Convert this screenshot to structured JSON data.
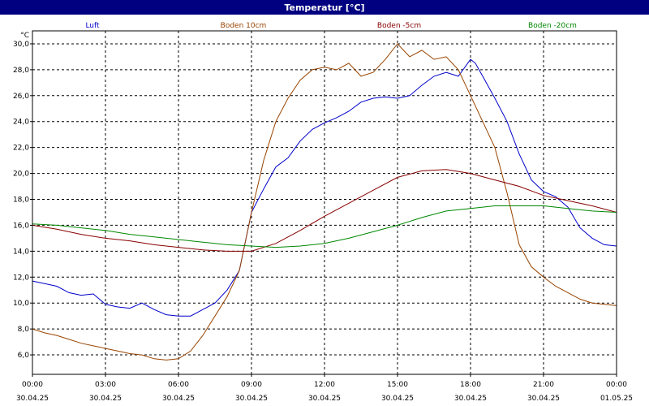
{
  "window": {
    "title": "Temperatur [°C]"
  },
  "colors": {
    "titlebar": "#000080",
    "grid": "#000000",
    "axis": "#000000"
  },
  "chart_data": {
    "type": "line",
    "title": "Temperatur [°C]",
    "ylabel": "°C",
    "xlabel": "",
    "ylim": [
      4.5,
      31.0
    ],
    "xlim": [
      0,
      24
    ],
    "x_unit": "hours from 30.04.25 00:00",
    "grid": true,
    "legend_placement": "top",
    "x_ticks": [
      {
        "x": 0,
        "time": "00:00",
        "date": "30.04.25"
      },
      {
        "x": 3,
        "time": "03:00",
        "date": "30.04.25"
      },
      {
        "x": 6,
        "time": "06:00",
        "date": "30.04.25"
      },
      {
        "x": 9,
        "time": "09:00",
        "date": "30.04.25"
      },
      {
        "x": 12,
        "time": "12:00",
        "date": "30.04.25"
      },
      {
        "x": 15,
        "time": "15:00",
        "date": "30.04.25"
      },
      {
        "x": 18,
        "time": "18:00",
        "date": "30.04.25"
      },
      {
        "x": 21,
        "time": "21:00",
        "date": "30.04.25"
      },
      {
        "x": 24,
        "time": "00:00",
        "date": "01.05.25"
      }
    ],
    "y_ticks": [
      {
        "v": 6,
        "label": "6,0"
      },
      {
        "v": 8,
        "label": "8,0"
      },
      {
        "v": 10,
        "label": "10,0"
      },
      {
        "v": 12,
        "label": "12,0"
      },
      {
        "v": 14,
        "label": "14,0"
      },
      {
        "v": 16,
        "label": "16,0"
      },
      {
        "v": 18,
        "label": "18,0"
      },
      {
        "v": 20,
        "label": "20,0"
      },
      {
        "v": 22,
        "label": "22,0"
      },
      {
        "v": 24,
        "label": "24,0"
      },
      {
        "v": 26,
        "label": "26,0"
      },
      {
        "v": 28,
        "label": "28,0"
      },
      {
        "v": 30,
        "label": "30,0"
      }
    ],
    "series": [
      {
        "name": "Luft",
        "color": "#0000cc",
        "x": [
          0,
          0.5,
          1,
          1.5,
          2,
          2.5,
          3,
          3.5,
          4,
          4.5,
          5,
          5.5,
          6,
          6.5,
          7,
          7.5,
          8,
          8.5,
          9,
          9.5,
          10,
          10.5,
          11,
          11.5,
          12,
          12.5,
          13,
          13.5,
          14,
          14.5,
          15,
          15.5,
          16,
          16.5,
          17,
          17.5,
          18,
          18.2,
          18.5,
          19,
          19.5,
          20,
          20.5,
          21,
          21.5,
          22,
          22.5,
          23,
          23.5,
          24
        ],
        "values": [
          11.7,
          11.5,
          11.3,
          10.8,
          10.6,
          10.7,
          9.9,
          9.7,
          9.6,
          10.0,
          9.5,
          9.1,
          9.0,
          9.0,
          9.5,
          10.0,
          11.0,
          12.5,
          17.0,
          18.8,
          20.5,
          21.2,
          22.5,
          23.4,
          23.9,
          24.3,
          24.8,
          25.5,
          25.8,
          25.9,
          25.8,
          26.0,
          26.8,
          27.5,
          27.8,
          27.5,
          28.8,
          28.5,
          27.5,
          25.8,
          24.0,
          21.5,
          19.5,
          18.6,
          18.2,
          17.4,
          15.8,
          15.0,
          14.5,
          14.4
        ]
      },
      {
        "name": "Boden 10cm",
        "color": "#994400",
        "x": [
          0,
          0.5,
          1,
          1.5,
          2,
          2.5,
          3,
          3.5,
          4,
          4.5,
          5,
          5.5,
          6,
          6.5,
          7,
          7.5,
          8,
          8.5,
          9,
          9.5,
          10,
          10.5,
          11,
          11.5,
          12,
          12.5,
          13,
          13.5,
          14,
          14.5,
          15,
          15.5,
          16,
          16.5,
          17,
          17.5,
          18,
          18.5,
          19,
          19.5,
          20,
          20.5,
          21,
          21.5,
          22,
          22.5,
          23,
          23.5,
          24
        ],
        "values": [
          8.0,
          7.7,
          7.5,
          7.2,
          6.9,
          6.7,
          6.5,
          6.3,
          6.1,
          6.0,
          5.7,
          5.6,
          5.7,
          6.3,
          7.5,
          9.0,
          10.5,
          12.5,
          17.0,
          21.0,
          24.0,
          25.8,
          27.2,
          28.0,
          28.2,
          28.0,
          28.5,
          27.5,
          27.8,
          28.8,
          30.0,
          29.0,
          29.5,
          28.8,
          29.0,
          28.0,
          26.0,
          24.0,
          22.0,
          18.5,
          14.5,
          12.8,
          12.0,
          11.3,
          10.8,
          10.3,
          10.0,
          9.9,
          9.8
        ]
      },
      {
        "name": "Boden -5cm",
        "color": "#880000",
        "x": [
          0,
          1,
          2,
          3,
          4,
          5,
          6,
          7,
          8,
          9,
          10,
          11,
          12,
          13,
          14,
          15,
          16,
          17,
          18,
          19,
          20,
          21,
          22,
          23,
          24
        ],
        "values": [
          16.0,
          15.7,
          15.3,
          15.0,
          14.8,
          14.5,
          14.3,
          14.1,
          14.0,
          14.0,
          14.6,
          15.6,
          16.7,
          17.7,
          18.7,
          19.7,
          20.2,
          20.3,
          20.0,
          19.5,
          19.0,
          18.3,
          17.9,
          17.5,
          17.0
        ]
      },
      {
        "name": "Boden -20cm",
        "color": "#008800",
        "x": [
          0,
          1,
          2,
          3,
          4,
          5,
          6,
          7,
          8,
          9,
          10,
          11,
          12,
          13,
          14,
          15,
          16,
          17,
          18,
          19,
          20,
          21,
          22,
          23,
          24
        ],
        "values": [
          16.1,
          16.0,
          15.8,
          15.6,
          15.3,
          15.1,
          14.9,
          14.7,
          14.5,
          14.4,
          14.3,
          14.4,
          14.6,
          15.0,
          15.5,
          16.0,
          16.6,
          17.1,
          17.3,
          17.5,
          17.5,
          17.5,
          17.3,
          17.1,
          17.0
        ]
      }
    ]
  }
}
